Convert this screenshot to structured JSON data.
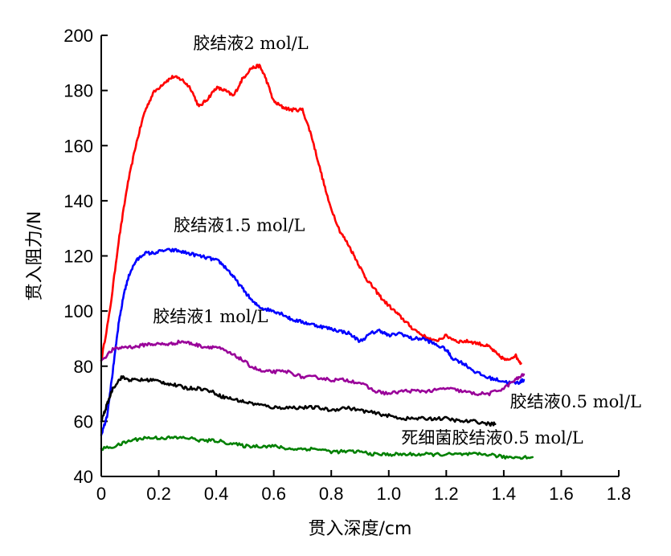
{
  "chart_data": {
    "type": "line",
    "title": "",
    "xlabel": "贯入深度/cm",
    "ylabel": "贯入阻力/N",
    "xlim": [
      0,
      1.8
    ],
    "ylim": [
      40,
      200
    ],
    "x_ticks": [
      "0",
      "0.2",
      "0.4",
      "0.6",
      "0.8",
      "1.0",
      "1.2",
      "1.4",
      "1.6",
      "1.8"
    ],
    "y_ticks": [
      "40",
      "60",
      "80",
      "100",
      "120",
      "140",
      "160",
      "180",
      "200"
    ],
    "x_tick_values": [
      0,
      0.2,
      0.4,
      0.6,
      0.8,
      1.0,
      1.2,
      1.4,
      1.6,
      1.8
    ],
    "y_tick_values": [
      40,
      60,
      80,
      100,
      120,
      140,
      160,
      180,
      200
    ],
    "grid": false,
    "legend": "none",
    "series": [
      {
        "name": "胶结液2 mol/L",
        "color": "#ff0000",
        "label_anchor": [
          0.52,
          195
        ],
        "points": [
          [
            0,
            82
          ],
          [
            0.03,
            100
          ],
          [
            0.06,
            125
          ],
          [
            0.09,
            145
          ],
          [
            0.12,
            160
          ],
          [
            0.15,
            172
          ],
          [
            0.18,
            179
          ],
          [
            0.22,
            183
          ],
          [
            0.25,
            185
          ],
          [
            0.28,
            184
          ],
          [
            0.31,
            181
          ],
          [
            0.34,
            174
          ],
          [
            0.37,
            177
          ],
          [
            0.4,
            181
          ],
          [
            0.43,
            180
          ],
          [
            0.46,
            178
          ],
          [
            0.49,
            184
          ],
          [
            0.52,
            188
          ],
          [
            0.55,
            189
          ],
          [
            0.57,
            185
          ],
          [
            0.6,
            176
          ],
          [
            0.63,
            174
          ],
          [
            0.66,
            173
          ],
          [
            0.7,
            173
          ],
          [
            0.73,
            164
          ],
          [
            0.76,
            152
          ],
          [
            0.79,
            140
          ],
          [
            0.83,
            129
          ],
          [
            0.86,
            124
          ],
          [
            0.89,
            118
          ],
          [
            0.92,
            112
          ],
          [
            0.95,
            108
          ],
          [
            0.98,
            104
          ],
          [
            1.02,
            100
          ],
          [
            1.05,
            97
          ],
          [
            1.08,
            94
          ],
          [
            1.12,
            91
          ],
          [
            1.16,
            89
          ],
          [
            1.2,
            91
          ],
          [
            1.24,
            89
          ],
          [
            1.28,
            89
          ],
          [
            1.32,
            88
          ],
          [
            1.35,
            87
          ],
          [
            1.38,
            84
          ],
          [
            1.41,
            82
          ],
          [
            1.44,
            84
          ],
          [
            1.46,
            81
          ]
        ]
      },
      {
        "name": "胶结液1.5 mol/L",
        "color": "#0000ff",
        "label_anchor": [
          0.48,
          129
        ],
        "points": [
          [
            0,
            55
          ],
          [
            0.02,
            62
          ],
          [
            0.04,
            78
          ],
          [
            0.06,
            95
          ],
          [
            0.08,
            107
          ],
          [
            0.1,
            114
          ],
          [
            0.12,
            118
          ],
          [
            0.15,
            121
          ],
          [
            0.18,
            121
          ],
          [
            0.22,
            122
          ],
          [
            0.26,
            122
          ],
          [
            0.3,
            121
          ],
          [
            0.34,
            120
          ],
          [
            0.38,
            119
          ],
          [
            0.41,
            118
          ],
          [
            0.44,
            115
          ],
          [
            0.47,
            111
          ],
          [
            0.5,
            107
          ],
          [
            0.53,
            103
          ],
          [
            0.56,
            101
          ],
          [
            0.6,
            100
          ],
          [
            0.63,
            99
          ],
          [
            0.66,
            97
          ],
          [
            0.7,
            96
          ],
          [
            0.74,
            95
          ],
          [
            0.78,
            94
          ],
          [
            0.82,
            93
          ],
          [
            0.86,
            92
          ],
          [
            0.9,
            89
          ],
          [
            0.94,
            92
          ],
          [
            0.97,
            93
          ],
          [
            1.0,
            91
          ],
          [
            1.04,
            92
          ],
          [
            1.08,
            90
          ],
          [
            1.12,
            90
          ],
          [
            1.16,
            88
          ],
          [
            1.2,
            86
          ],
          [
            1.22,
            83
          ],
          [
            1.26,
            81
          ],
          [
            1.3,
            78
          ],
          [
            1.34,
            76
          ],
          [
            1.38,
            75
          ],
          [
            1.42,
            74
          ],
          [
            1.45,
            74
          ],
          [
            1.47,
            75
          ]
        ]
      },
      {
        "name": "胶结液1 mol/L",
        "color": "#990099",
        "label_anchor": [
          0.38,
          96
        ],
        "points": [
          [
            0,
            82
          ],
          [
            0.04,
            86
          ],
          [
            0.08,
            87
          ],
          [
            0.12,
            87
          ],
          [
            0.16,
            88
          ],
          [
            0.2,
            88
          ],
          [
            0.24,
            88
          ],
          [
            0.28,
            89
          ],
          [
            0.32,
            88
          ],
          [
            0.36,
            87
          ],
          [
            0.4,
            87
          ],
          [
            0.44,
            85
          ],
          [
            0.48,
            83
          ],
          [
            0.52,
            80
          ],
          [
            0.56,
            78
          ],
          [
            0.6,
            78
          ],
          [
            0.65,
            78
          ],
          [
            0.7,
            76
          ],
          [
            0.75,
            76
          ],
          [
            0.8,
            75
          ],
          [
            0.85,
            75
          ],
          [
            0.9,
            74
          ],
          [
            0.95,
            71
          ],
          [
            1.0,
            70
          ],
          [
            1.05,
            71
          ],
          [
            1.1,
            71
          ],
          [
            1.15,
            71
          ],
          [
            1.2,
            72
          ],
          [
            1.25,
            71
          ],
          [
            1.3,
            70
          ],
          [
            1.35,
            70
          ],
          [
            1.4,
            72
          ],
          [
            1.44,
            75
          ],
          [
            1.47,
            77
          ]
        ]
      },
      {
        "name": "胶结液0.5 mol/L",
        "color": "#000000",
        "label_anchor": [
          1.65,
          65
        ],
        "points": [
          [
            0,
            60
          ],
          [
            0.02,
            66
          ],
          [
            0.04,
            72
          ],
          [
            0.07,
            76
          ],
          [
            0.1,
            75
          ],
          [
            0.14,
            75
          ],
          [
            0.18,
            75
          ],
          [
            0.22,
            74
          ],
          [
            0.26,
            73
          ],
          [
            0.3,
            72
          ],
          [
            0.34,
            72
          ],
          [
            0.38,
            71
          ],
          [
            0.42,
            69
          ],
          [
            0.46,
            68
          ],
          [
            0.5,
            67
          ],
          [
            0.55,
            66
          ],
          [
            0.6,
            65
          ],
          [
            0.65,
            65
          ],
          [
            0.7,
            65
          ],
          [
            0.75,
            65
          ],
          [
            0.8,
            64
          ],
          [
            0.85,
            65
          ],
          [
            0.9,
            64
          ],
          [
            0.95,
            63
          ],
          [
            1.0,
            62
          ],
          [
            1.05,
            61
          ],
          [
            1.1,
            61
          ],
          [
            1.15,
            61
          ],
          [
            1.2,
            61
          ],
          [
            1.25,
            60
          ],
          [
            1.3,
            60
          ],
          [
            1.35,
            59
          ],
          [
            1.37,
            59
          ]
        ]
      },
      {
        "name": "死细菌胶结液0.5 mol/L",
        "color": "#008000",
        "label_anchor": [
          1.36,
          52
        ],
        "points": [
          [
            0,
            50
          ],
          [
            0.05,
            51
          ],
          [
            0.1,
            53
          ],
          [
            0.15,
            54
          ],
          [
            0.2,
            54
          ],
          [
            0.25,
            54
          ],
          [
            0.3,
            54
          ],
          [
            0.35,
            53
          ],
          [
            0.4,
            53
          ],
          [
            0.45,
            52
          ],
          [
            0.5,
            51
          ],
          [
            0.55,
            51
          ],
          [
            0.6,
            51
          ],
          [
            0.65,
            50
          ],
          [
            0.7,
            50
          ],
          [
            0.75,
            50
          ],
          [
            0.8,
            49
          ],
          [
            0.85,
            49
          ],
          [
            0.9,
            49
          ],
          [
            0.95,
            48
          ],
          [
            1.0,
            48
          ],
          [
            1.05,
            48
          ],
          [
            1.1,
            48
          ],
          [
            1.15,
            48
          ],
          [
            1.2,
            48
          ],
          [
            1.25,
            48
          ],
          [
            1.3,
            48
          ],
          [
            1.35,
            48
          ],
          [
            1.4,
            47
          ],
          [
            1.45,
            47
          ],
          [
            1.5,
            47
          ]
        ]
      }
    ]
  }
}
